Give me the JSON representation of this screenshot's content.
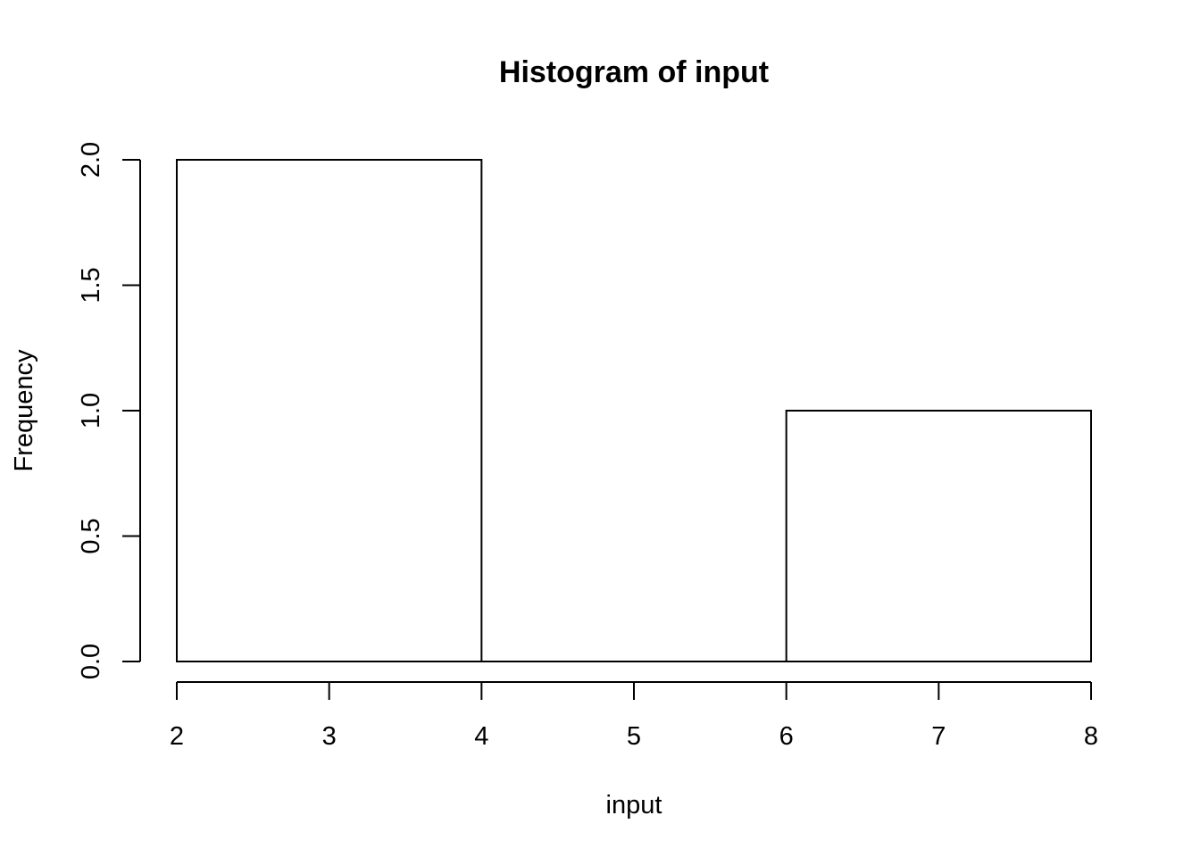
{
  "chart_data": {
    "type": "bar",
    "title": "Histogram of input",
    "xlabel": "input",
    "ylabel": "Frequency",
    "bins": [
      {
        "start": 2,
        "end": 4,
        "count": 2
      },
      {
        "start": 4,
        "end": 6,
        "count": 0
      },
      {
        "start": 6,
        "end": 8,
        "count": 1
      }
    ],
    "x_ticks": [
      "2",
      "3",
      "4",
      "5",
      "6",
      "7",
      "8"
    ],
    "y_ticks": [
      "0.0",
      "0.5",
      "1.0",
      "1.5",
      "2.0"
    ],
    "xlim": [
      2,
      8
    ],
    "ylim": [
      0,
      2
    ],
    "grid": false,
    "bar_fill": "#ffffff",
    "bar_stroke": "#000000"
  }
}
